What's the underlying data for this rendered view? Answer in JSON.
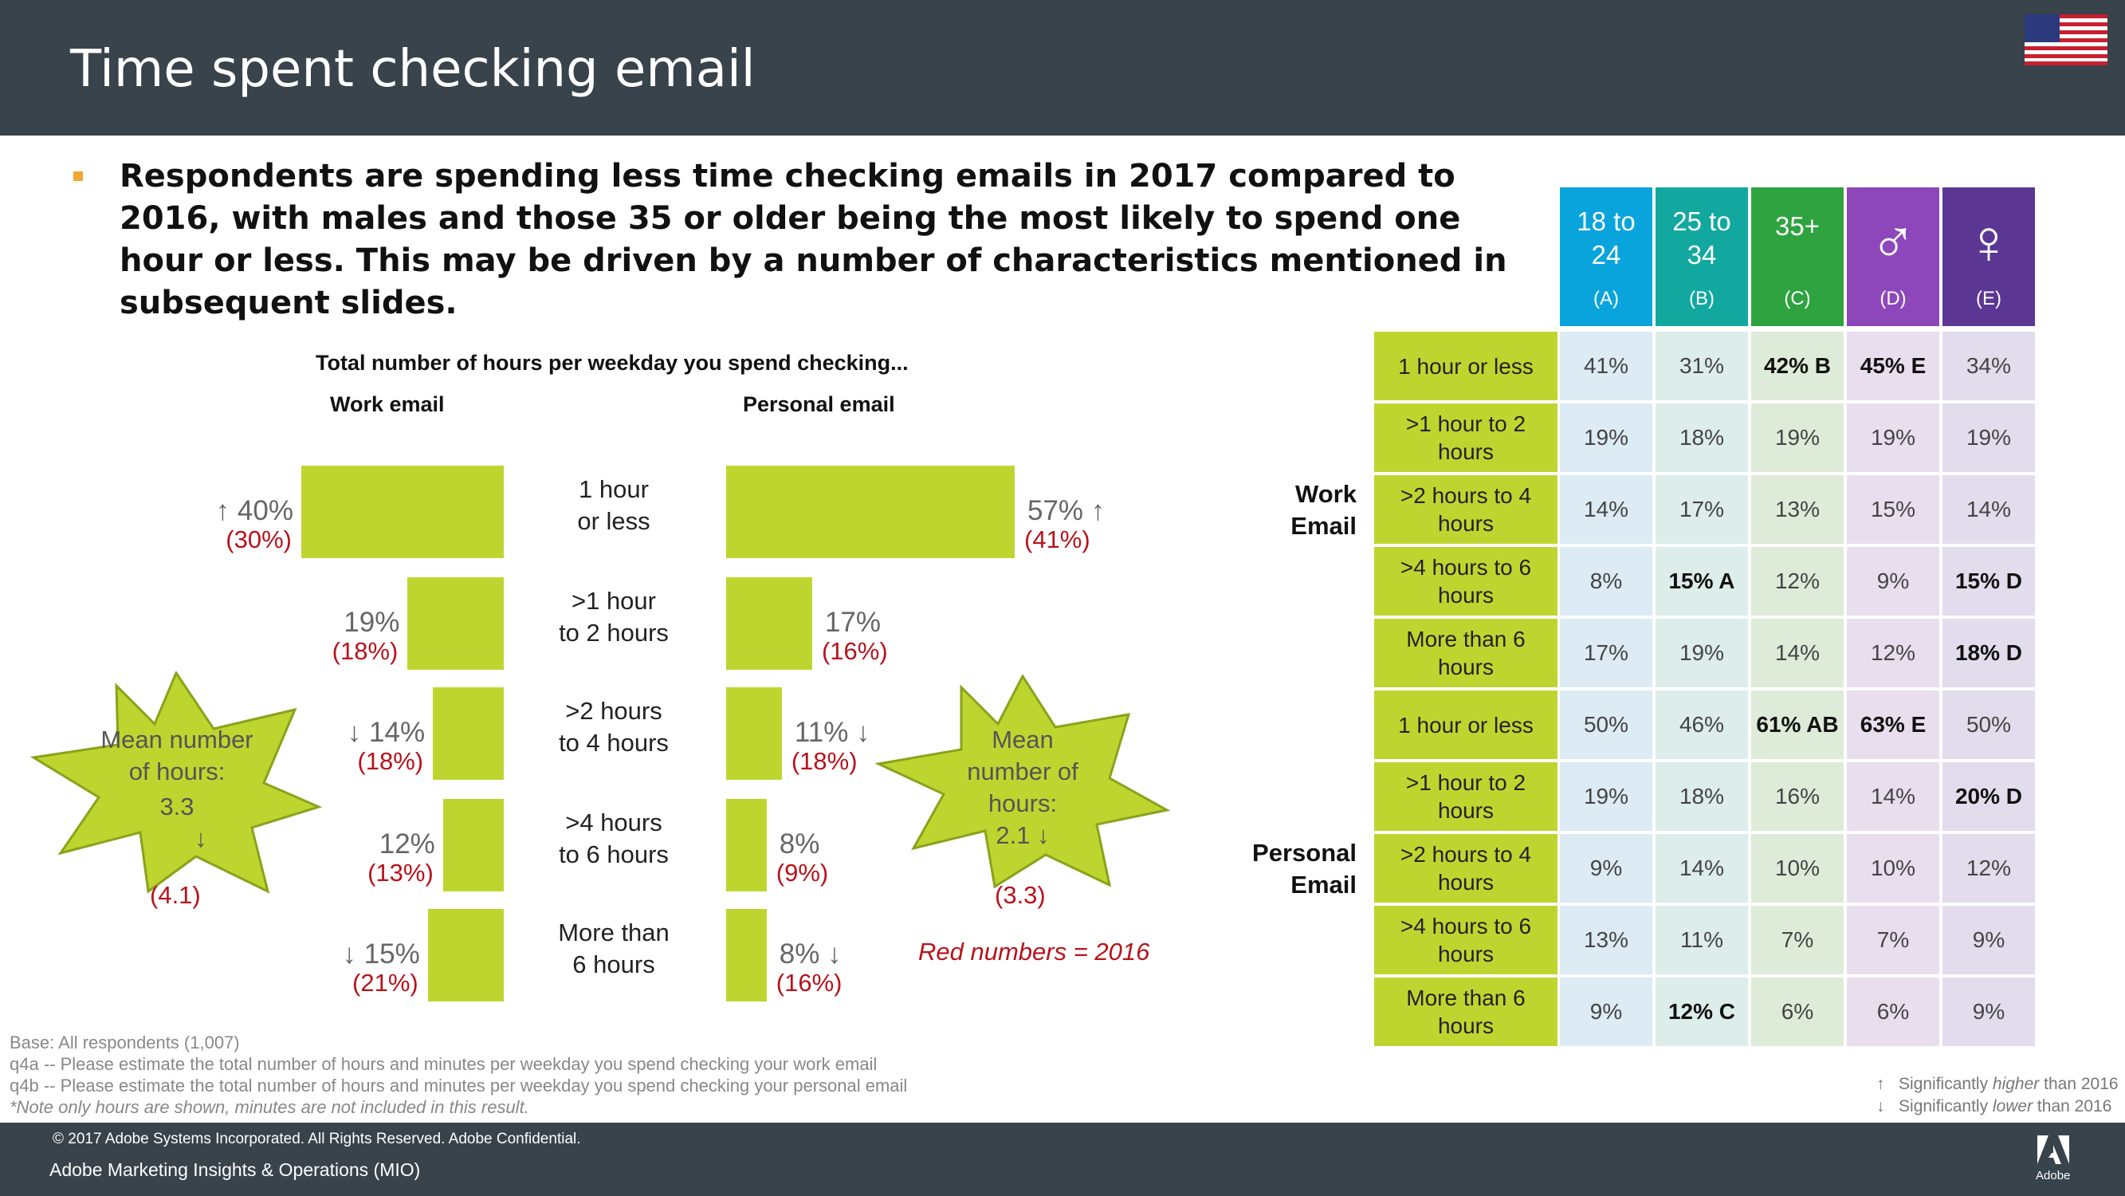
{
  "header": {
    "title": "Time spent checking email"
  },
  "summary": "Respondents are spending less time checking emails in 2017 compared to 2016, with males and those 35 or older being the most likely to spend one hour or less. This may be driven by a number of characteristics mentioned in subsequent slides.",
  "chart_data": [
    {
      "type": "bar",
      "title": "Total number of hours per weekday you spend checking...",
      "name": "Work email",
      "categories": [
        "1 hour or less",
        ">1 hour to 2 hours",
        ">2 hours to 4 hours",
        ">4 hours to 6 hours",
        "More than 6 hours"
      ],
      "values": [
        40,
        19,
        14,
        12,
        15
      ],
      "values_2016": [
        30,
        18,
        18,
        13,
        21
      ],
      "labels": [
        "40%",
        "19%",
        "14%",
        "12%",
        "15%"
      ],
      "labels_2016": [
        "(30%)",
        "(18%)",
        "(18%)",
        "(13%)",
        "(21%)"
      ],
      "arrows": [
        "↑",
        "",
        "↓",
        "",
        "↓"
      ],
      "mean": {
        "label": "Mean number of hours:",
        "value": "3.3",
        "arrow": "↓",
        "prev": "(4.1)"
      }
    },
    {
      "type": "bar",
      "title": "Total number of hours per weekday you spend checking...",
      "name": "Personal email",
      "categories": [
        "1 hour or less",
        ">1 hour to 2 hours",
        ">2 hours to 4 hours",
        ">4 hours to 6 hours",
        "More than 6 hours"
      ],
      "values": [
        57,
        17,
        11,
        8,
        8
      ],
      "values_2016": [
        41,
        16,
        18,
        9,
        16
      ],
      "labels": [
        "57%",
        "17%",
        "11%",
        "8%",
        "8%"
      ],
      "labels_2016": [
        "(41%)",
        "(16%)",
        "(18%)",
        "(9%)",
        "(16%)"
      ],
      "arrows": [
        "↑",
        "",
        "↓",
        "",
        "↓"
      ],
      "mean": {
        "label": "Mean number of hours:",
        "value": "2.1",
        "arrow": "↓",
        "prev": "(3.3)"
      }
    }
  ],
  "chart_labels": {
    "title": "Total number of hours per weekday you spend checking...",
    "work": "Work email",
    "personal": "Personal email",
    "cat_lines": [
      [
        "1 hour",
        "or less"
      ],
      [
        ">1 hour",
        "to 2 hours"
      ],
      [
        ">2 hours",
        "to 4 hours"
      ],
      [
        ">4 hours",
        "to 6 hours"
      ],
      [
        "More than",
        "6 hours"
      ]
    ],
    "star_left": [
      "Mean number",
      "of hours:",
      "3.3",
      "↓"
    ],
    "star_left_prev": "(4.1)",
    "star_right": [
      "Mean",
      "number of",
      "hours:",
      "2.1 ↓"
    ],
    "star_right_prev": "(3.3)",
    "red_note": "Red numbers = 2016"
  },
  "table": {
    "columns": [
      {
        "lines": [
          "18 to",
          "24"
        ],
        "letter": "(A)",
        "color": "#0aa4dc",
        "cell_bg": "#dcebf4"
      },
      {
        "lines": [
          "25 to",
          "34"
        ],
        "letter": "(B)",
        "color": "#12a8a0",
        "cell_bg": "#dcedea"
      },
      {
        "lines": [
          "35+"
        ],
        "letter": "(C)",
        "color": "#2ea33f",
        "cell_bg": "#deebd8"
      },
      {
        "lines": [
          "♂"
        ],
        "letter": "(D)",
        "color": "#8e47bb",
        "cell_bg": "#e8deee"
      },
      {
        "lines": [
          "♀"
        ],
        "letter": "(E)",
        "color": "#5b3793",
        "cell_bg": "#e2dcec"
      }
    ],
    "groups": [
      {
        "label": [
          "Work",
          "Email"
        ],
        "rows": [
          {
            "label": [
              "1 hour or less"
            ],
            "cells": [
              "41%",
              "31%",
              "42% B",
              "45% E",
              "34%"
            ],
            "bold": [
              false,
              false,
              true,
              true,
              false
            ]
          },
          {
            "label": [
              ">1 hour to 2",
              "hours"
            ],
            "cells": [
              "19%",
              "18%",
              "19%",
              "19%",
              "19%"
            ],
            "bold": [
              false,
              false,
              false,
              false,
              false
            ]
          },
          {
            "label": [
              ">2 hours to 4",
              "hours"
            ],
            "cells": [
              "14%",
              "17%",
              "13%",
              "15%",
              "14%"
            ],
            "bold": [
              false,
              false,
              false,
              false,
              false
            ]
          },
          {
            "label": [
              ">4 hours to 6",
              "hours"
            ],
            "cells": [
              "8%",
              "15% A",
              "12%",
              "9%",
              "15% D"
            ],
            "bold": [
              false,
              true,
              false,
              false,
              true
            ]
          },
          {
            "label": [
              "More than 6",
              "hours"
            ],
            "cells": [
              "17%",
              "19%",
              "14%",
              "12%",
              "18% D"
            ],
            "bold": [
              false,
              false,
              false,
              false,
              true
            ]
          }
        ]
      },
      {
        "label": [
          "Personal",
          "Email"
        ],
        "rows": [
          {
            "label": [
              "1 hour or less"
            ],
            "cells": [
              "50%",
              "46%",
              "61% AB",
              "63% E",
              "50%"
            ],
            "bold": [
              false,
              false,
              true,
              true,
              false
            ]
          },
          {
            "label": [
              ">1 hour to 2",
              "hours"
            ],
            "cells": [
              "19%",
              "18%",
              "16%",
              "14%",
              "20% D"
            ],
            "bold": [
              false,
              false,
              false,
              false,
              true
            ]
          },
          {
            "label": [
              ">2 hours to 4",
              "hours"
            ],
            "cells": [
              "9%",
              "14%",
              "10%",
              "10%",
              "12%"
            ],
            "bold": [
              false,
              false,
              false,
              false,
              false
            ]
          },
          {
            "label": [
              ">4 hours to 6",
              "hours"
            ],
            "cells": [
              "13%",
              "11%",
              "7%",
              "7%",
              "9%"
            ],
            "bold": [
              false,
              false,
              false,
              false,
              false
            ]
          },
          {
            "label": [
              "More than 6",
              "hours"
            ],
            "cells": [
              "9%",
              "12% C",
              "6%",
              "6%",
              "9%"
            ],
            "bold": [
              false,
              true,
              false,
              false,
              false
            ]
          }
        ]
      }
    ]
  },
  "base_notes": [
    "Base: All respondents (1,007)",
    "q4a -- Please estimate the total number of hours and minutes per weekday you spend checking your work email",
    "q4b -- Please estimate the total number of hours and minutes per weekday you spend checking your personal email",
    "*Note only hours are shown, minutes are not included in this result."
  ],
  "legend": {
    "higher": {
      "arrow": "↑",
      "pre": "Significantly ",
      "em": "higher",
      "post": " than 2016"
    },
    "lower": {
      "arrow": "↓",
      "pre": "Significantly ",
      "em": "lower",
      "post": " than 2016"
    }
  },
  "footer": {
    "copyright": "© 2017 Adobe Systems Incorporated.  All Rights Reserved.  Adobe Confidential.",
    "org": "Adobe Marketing Insights & Operations (MIO)",
    "brand": "Adobe"
  },
  "colors": {
    "header_bg": "#38434c",
    "bar": "#bfd52f",
    "red": "#b8121b",
    "bullet": "#f0a830"
  }
}
